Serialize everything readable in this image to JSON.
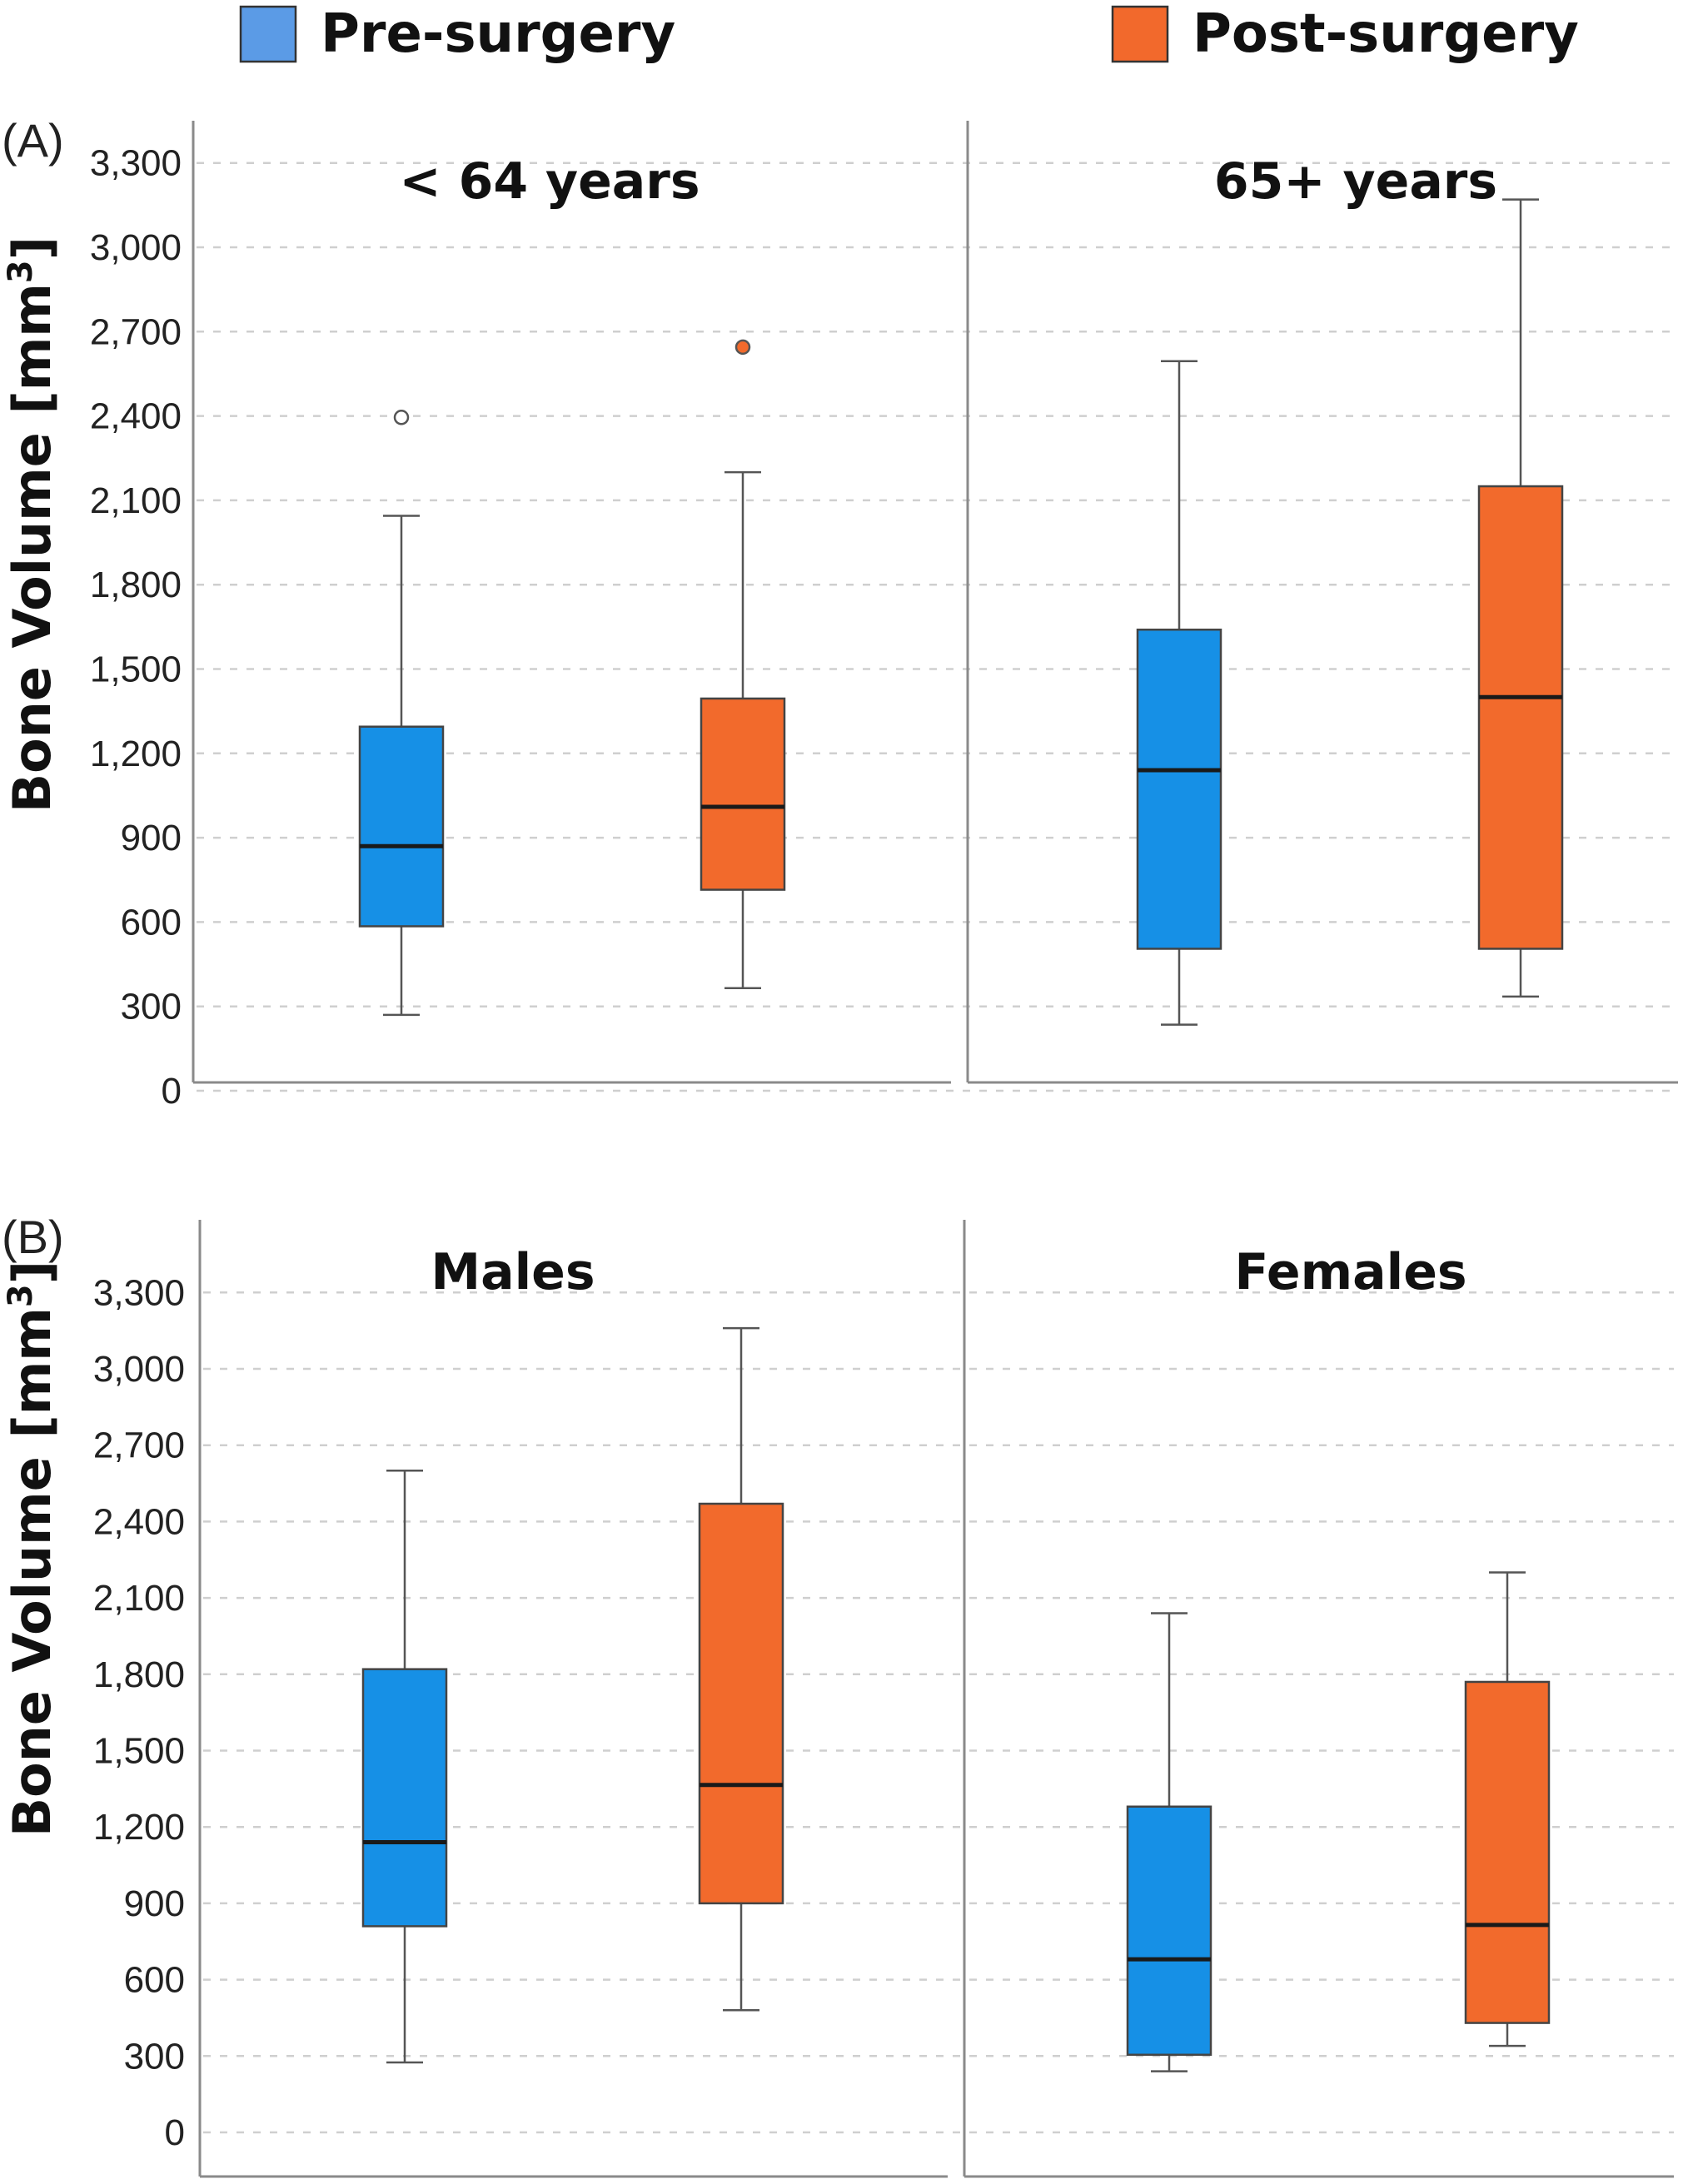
{
  "legend": {
    "items": [
      {
        "label": "Pre-surgery",
        "color": "#5b9be6"
      },
      {
        "label": "Post-surgery",
        "color": "#f2692c"
      }
    ]
  },
  "colors": {
    "pre": "#1690e6",
    "post": "#f26a2c"
  },
  "chart_data": [
    {
      "type": "box",
      "panel_label": "(A)",
      "ylabel": "Bone Volume [mm3]",
      "ylim": [
        0,
        3500
      ],
      "yticks": [
        0,
        300,
        600,
        900,
        1200,
        1500,
        1800,
        2100,
        2400,
        2700,
        3000,
        3300
      ],
      "ytick_labels": [
        "0",
        "300",
        "600",
        "900",
        "1,200",
        "1,500",
        "1,800",
        "2,100",
        "2,400",
        "2,700",
        "3,000",
        "3,300"
      ],
      "grid": true,
      "facets": [
        {
          "title": "< 64 years",
          "boxes": [
            {
              "group": "Pre-surgery",
              "min": 270,
              "q1": 585,
              "median": 870,
              "q3": 1295,
              "max": 2045,
              "outliers": [
                {
                  "value": 2395,
                  "filled": false
                }
              ]
            },
            {
              "group": "Post-surgery",
              "min": 365,
              "q1": 715,
              "median": 1010,
              "q3": 1395,
              "max": 2200,
              "outliers": [
                {
                  "value": 2645,
                  "filled": true
                }
              ]
            }
          ]
        },
        {
          "title": "65+ years",
          "boxes": [
            {
              "group": "Pre-surgery",
              "min": 235,
              "q1": 505,
              "median": 1140,
              "q3": 1640,
              "max": 2595,
              "outliers": []
            },
            {
              "group": "Post-surgery",
              "min": 335,
              "q1": 505,
              "median": 1400,
              "q3": 2150,
              "max": 3170,
              "outliers": []
            }
          ]
        }
      ]
    },
    {
      "type": "box",
      "panel_label": "(B)",
      "ylabel": "Bone Volume [mm3]",
      "ylim": [
        -150,
        3500
      ],
      "yticks": [
        0,
        300,
        600,
        900,
        1200,
        1500,
        1800,
        2100,
        2400,
        2700,
        3000,
        3300
      ],
      "ytick_labels": [
        "0",
        "300",
        "600",
        "900",
        "1,200",
        "1,500",
        "1,800",
        "2,100",
        "2,400",
        "2,700",
        "3,000",
        "3,300"
      ],
      "grid": true,
      "facets": [
        {
          "title": "Males",
          "boxes": [
            {
              "group": "Pre-surgery",
              "min": 275,
              "q1": 810,
              "median": 1140,
              "q3": 1820,
              "max": 2600,
              "outliers": []
            },
            {
              "group": "Post-surgery",
              "min": 480,
              "q1": 900,
              "median": 1365,
              "q3": 2470,
              "max": 3160,
              "outliers": []
            }
          ]
        },
        {
          "title": "Females",
          "boxes": [
            {
              "group": "Pre-surgery",
              "min": 240,
              "q1": 305,
              "median": 680,
              "q3": 1280,
              "max": 2040,
              "outliers": []
            },
            {
              "group": "Post-surgery",
              "min": 340,
              "q1": 430,
              "median": 815,
              "q3": 1770,
              "max": 2200,
              "outliers": []
            }
          ]
        }
      ]
    }
  ]
}
